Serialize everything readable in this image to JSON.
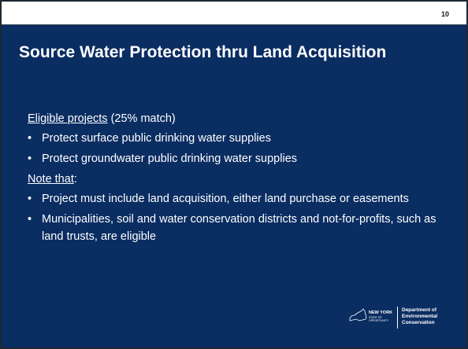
{
  "page_number": "10",
  "title": "Source Water Protection thru Land Acquisition",
  "sections": [
    {
      "heading": "Eligible projects",
      "heading_suffix": "(25% match)",
      "bullets": [
        "Protect surface public drinking water supplies",
        "Protect groundwater public drinking water supplies"
      ]
    },
    {
      "heading": "Note that",
      "heading_suffix": ":",
      "bullets": [
        "Project must include land acquisition, either land purchase or easements",
        "Municipalities, soil and water conservation districts and not-for-profits, such as land trusts, are eligible"
      ]
    }
  ],
  "logo": {
    "state": "NEW YORK",
    "tagline": "STATE OF OPPORTUNITY",
    "department": [
      "Department of",
      "Environmental",
      "Conservation"
    ]
  }
}
